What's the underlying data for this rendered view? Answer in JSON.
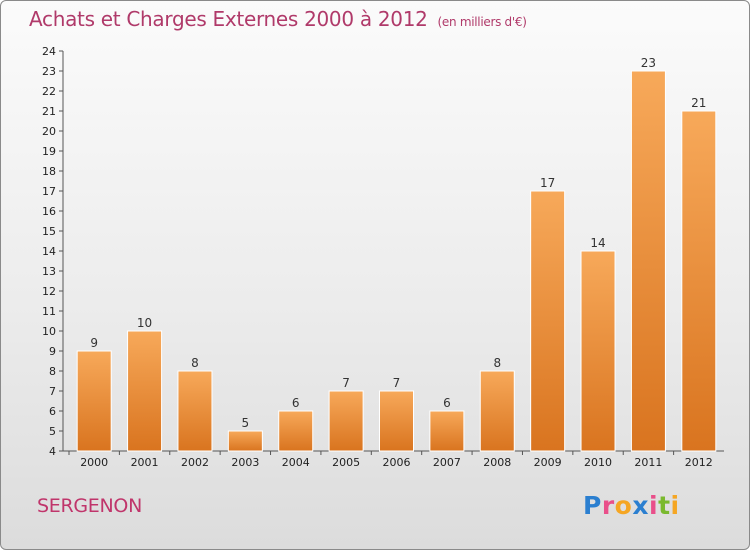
{
  "title": "Achats et Charges Externes 2000 à 2012",
  "subtitle": "(en milliers d'€)",
  "town": "SERGENON",
  "logo": {
    "letters": [
      "P",
      "r",
      "o",
      "x",
      "i",
      "t",
      "i"
    ],
    "colors": [
      "#2b7fd0",
      "#e94f8a",
      "#f5a623",
      "#2b7fd0",
      "#e94f8a",
      "#7ab92e",
      "#f5a623"
    ]
  },
  "colors": {
    "bar_light": "#f7a95a",
    "bar_dark": "#d9741f",
    "title": "#b03a6a",
    "town": "#c0356b"
  },
  "chart_data": {
    "type": "bar",
    "title": "Achats et Charges Externes 2000 à 2012",
    "subtitle": "(en milliers d'€)",
    "xlabel": "",
    "ylabel": "",
    "categories": [
      "2000",
      "2001",
      "2002",
      "2003",
      "2004",
      "2005",
      "2006",
      "2007",
      "2008",
      "2009",
      "2010",
      "2011",
      "2012"
    ],
    "values": [
      9,
      10,
      8,
      5,
      6,
      7,
      7,
      6,
      8,
      17,
      14,
      23,
      21
    ],
    "ylim": [
      4,
      24
    ],
    "yticks": [
      4,
      5,
      6,
      7,
      8,
      9,
      10,
      11,
      12,
      13,
      14,
      15,
      16,
      17,
      18,
      19,
      20,
      21,
      22,
      23,
      24
    ],
    "grid": false,
    "legend": "none"
  }
}
